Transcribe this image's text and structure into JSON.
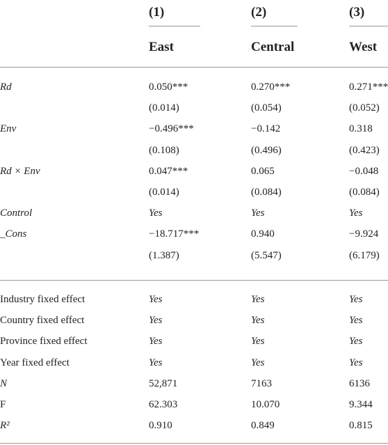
{
  "header": {
    "numbers": [
      "(1)",
      "(2)",
      "(3)"
    ],
    "regions": [
      "East",
      "Central",
      "West"
    ]
  },
  "table": {
    "groups": [
      {
        "rows": [
          [
            "Rd",
            "0.050***",
            "0.270***",
            "0.271***"
          ],
          [
            null,
            "(0.014)",
            "(0.054)",
            "(0.052)"
          ],
          [
            "Env",
            "−0.496***",
            "−0.142",
            "0.318"
          ],
          [
            null,
            "(0.108)",
            "(0.496)",
            "(0.423)"
          ],
          [
            "Rd × Env",
            "0.047***",
            "0.065",
            "−0.048"
          ],
          [
            null,
            "(0.014)",
            "(0.084)",
            "(0.084)"
          ],
          [
            "Control",
            "Yes",
            "Yes",
            "Yes"
          ],
          [
            "_Cons",
            "−18.717***",
            "0.940",
            "−9.924"
          ],
          [
            null,
            "(1.387)",
            "(5.547)",
            "(6.179)"
          ]
        ]
      },
      {
        "rows": [
          [
            "Industry fixed effect",
            "Yes",
            "Yes",
            "Yes"
          ],
          [
            "Country fixed effect",
            "Yes",
            "Yes",
            "Yes"
          ],
          [
            "Province fixed effect",
            "Yes",
            "Yes",
            "Yes"
          ],
          [
            "Year fixed effect",
            "Yes",
            "Yes",
            "Yes"
          ],
          [
            "N",
            "52,871",
            "7163",
            "6136"
          ],
          [
            "F",
            "62.303",
            "10.070",
            "9.344"
          ],
          [
            "R²",
            "0.910",
            "0.849",
            "0.815"
          ]
        ]
      }
    ]
  }
}
